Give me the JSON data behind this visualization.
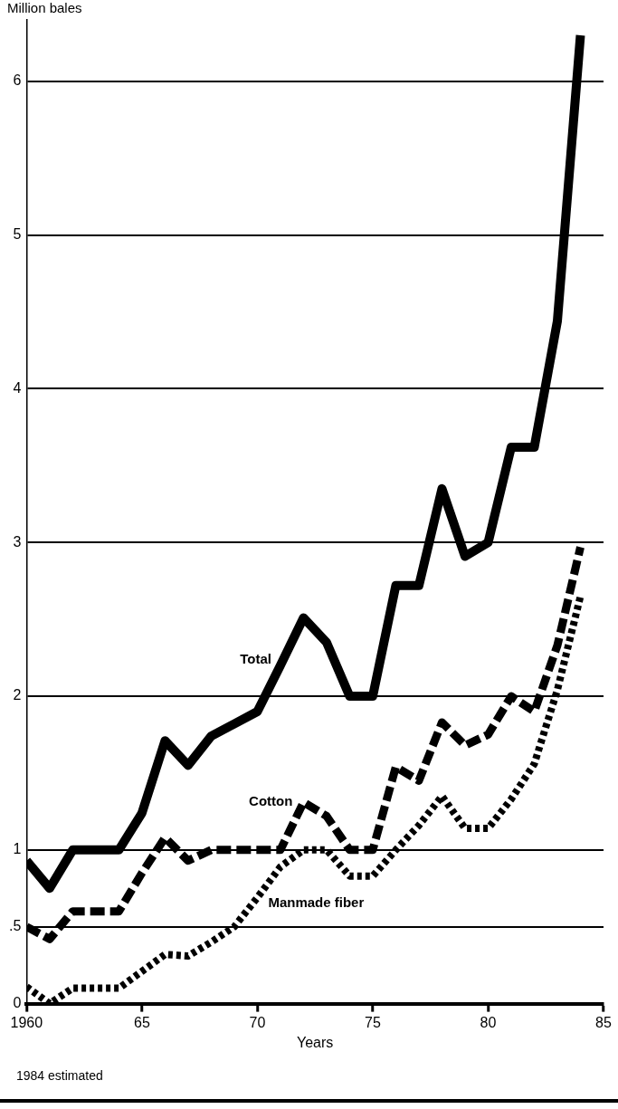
{
  "chart_data": {
    "type": "line",
    "ylabel": "Million bales",
    "xlabel": "Years",
    "annotations": [
      "1984 estimated"
    ],
    "x": [
      1960,
      1961,
      1962,
      1963,
      1964,
      1965,
      1966,
      1967,
      1968,
      1969,
      1970,
      1971,
      1972,
      1973,
      1974,
      1975,
      1976,
      1977,
      1978,
      1979,
      1980,
      1981,
      1982,
      1983,
      1984
    ],
    "series": [
      {
        "name": "Total",
        "color": "#000000",
        "line_style": "solid",
        "values": [
          0.93,
          0.75,
          1.0,
          1.0,
          1.0,
          1.24,
          1.71,
          1.55,
          1.74,
          1.82,
          1.9,
          2.2,
          2.51,
          2.35,
          2.0,
          2.0,
          2.72,
          2.72,
          3.35,
          2.91,
          3.0,
          3.62,
          3.62,
          4.44,
          6.3
        ]
      },
      {
        "name": "Cotton",
        "color": "#000000",
        "line_style": "dashed",
        "values": [
          0.5,
          0.42,
          0.6,
          0.6,
          0.6,
          0.85,
          1.08,
          0.93,
          1.0,
          1.0,
          1.0,
          1.0,
          1.31,
          1.22,
          1.0,
          1.0,
          1.54,
          1.45,
          1.83,
          1.68,
          1.75,
          2.0,
          1.9,
          2.33,
          2.97
        ]
      },
      {
        "name": "Manmade fiber",
        "color": "#000000",
        "line_style": "dotted",
        "values": [
          0.11,
          0.0,
          0.1,
          0.1,
          0.1,
          0.21,
          0.32,
          0.31,
          0.4,
          0.5,
          0.69,
          0.89,
          1.0,
          1.0,
          0.83,
          0.83,
          1.0,
          1.16,
          1.35,
          1.14,
          1.14,
          1.33,
          1.56,
          2.04,
          2.65
        ]
      }
    ],
    "xlim": [
      1960,
      1985
    ],
    "xticks": [
      {
        "value": 1960,
        "label": "1960"
      },
      {
        "value": 1965,
        "label": "65"
      },
      {
        "value": 1970,
        "label": "70"
      },
      {
        "value": 1975,
        "label": "75"
      },
      {
        "value": 1980,
        "label": "80"
      },
      {
        "value": 1985,
        "label": "85"
      }
    ],
    "ylim": [
      0,
      6.4
    ],
    "yticks": [
      0,
      {
        "value": 0.5,
        "label": ".5"
      },
      1,
      2,
      3,
      4,
      5,
      6
    ],
    "grid": "y",
    "legend": false
  }
}
